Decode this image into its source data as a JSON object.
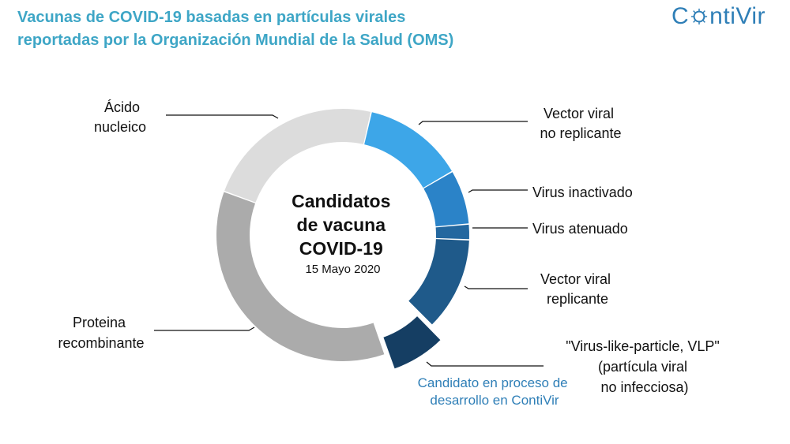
{
  "header": {
    "title_line1": "Vacunas de COVID-19 basadas en partículas virales",
    "title_line2": "reportadas por la Organización Mundial de la Salud (OMS)",
    "logo_before": "C",
    "logo_after": "ntiVir"
  },
  "colors": {
    "title": "#3ea6c6",
    "logo": "#2f7fb7",
    "note": "#2f7fb7"
  },
  "chart_data": {
    "type": "pie",
    "variant": "donut",
    "title": "",
    "center": {
      "line1": "Candidatos",
      "line2": "de vacuna",
      "line3": "COVID-19",
      "date": "15 Mayo 2020"
    },
    "start_angle_deg": 13,
    "slices": [
      {
        "key": "vector-viral-no-replicante",
        "label_lines": [
          "Vector viral",
          "no replicante"
        ],
        "value": 13,
        "color": "#3da6e8",
        "exploded": false
      },
      {
        "key": "virus-inactivado",
        "label_lines": [
          "Virus inactivado"
        ],
        "value": 7,
        "color": "#2b83c8",
        "exploded": false
      },
      {
        "key": "virus-atenuado",
        "label_lines": [
          "Virus atenuado"
        ],
        "value": 2,
        "color": "#23679f",
        "exploded": false
      },
      {
        "key": "vector-viral-replicante",
        "label_lines": [
          "Vector viral",
          "replicante"
        ],
        "value": 12,
        "color": "#1f5a8a",
        "exploded": false
      },
      {
        "key": "vlp",
        "label_lines": [
          "\"Virus-like-particle, VLP\"",
          "(partícula viral",
          "no infecciosa)"
        ],
        "value": 7,
        "color": "#153e63",
        "exploded": true
      },
      {
        "key": "proteina-recombinante",
        "label_lines": [
          "Proteina",
          "recombinante"
        ],
        "value": 36,
        "color": "#ababab",
        "exploded": false
      },
      {
        "key": "acido-nucleico",
        "label_lines": [
          "Ácido",
          "nucleico"
        ],
        "value": 23,
        "color": "#dcdcdc",
        "exploded": false
      }
    ],
    "annotation": {
      "line1": "Candidato en proceso de",
      "line2": "desarrollo en ContiVir",
      "refers_to": "vlp"
    }
  }
}
